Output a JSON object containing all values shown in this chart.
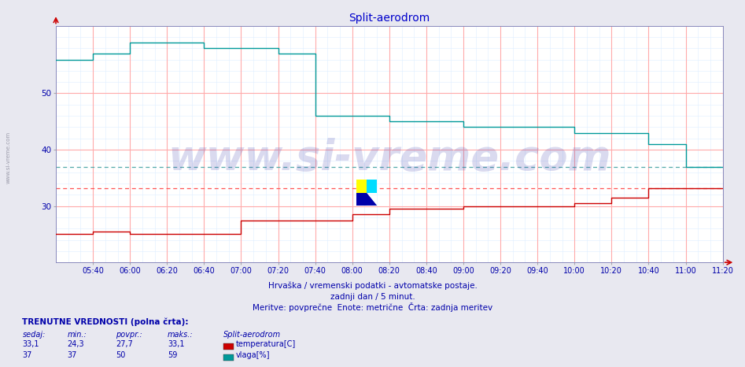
{
  "title": "Split-aerodrom",
  "title_color": "#0000cc",
  "bg_color": "#e8e8f0",
  "plot_bg_color": "#ffffff",
  "grid_major_color": "#ffaaaa",
  "grid_minor_color": "#ddeeff",
  "xlabel_color": "#0000aa",
  "ymin": 20,
  "ymax": 62,
  "yticks": [
    30,
    40,
    50
  ],
  "xmin": 0,
  "xmax": 216,
  "xtick_labels": [
    "05:40",
    "06:00",
    "06:20",
    "06:40",
    "07:00",
    "07:20",
    "07:40",
    "08:00",
    "08:20",
    "08:40",
    "09:00",
    "09:20",
    "09:40",
    "10:00",
    "10:20",
    "10:40",
    "11:00",
    "11:20"
  ],
  "xtick_positions": [
    12,
    24,
    36,
    48,
    60,
    72,
    84,
    96,
    108,
    120,
    132,
    144,
    156,
    168,
    180,
    192,
    204,
    216
  ],
  "temp_color": "#cc0000",
  "hum_color": "#009999",
  "temp_avg_color": "#ff5555",
  "hum_avg_color": "#55aaaa",
  "temp_avg": 33.1,
  "hum_avg": 37,
  "temp_x": [
    0,
    12,
    12,
    24,
    24,
    36,
    36,
    48,
    48,
    60,
    60,
    72,
    72,
    84,
    84,
    96,
    96,
    108,
    108,
    120,
    120,
    132,
    132,
    144,
    144,
    156,
    156,
    168,
    168,
    180,
    180,
    192,
    192,
    204,
    204,
    216
  ],
  "temp_y": [
    25,
    25,
    25.5,
    25.5,
    25,
    25,
    25,
    25,
    25,
    25,
    27.5,
    27.5,
    27.5,
    27.5,
    27.5,
    27.5,
    28.5,
    28.5,
    29.5,
    29.5,
    29.5,
    29.5,
    30,
    30,
    30,
    30,
    30,
    30,
    30.5,
    30.5,
    31.5,
    31.5,
    33.1,
    33.1,
    33.1,
    33.1
  ],
  "hum_x": [
    0,
    12,
    12,
    24,
    24,
    36,
    36,
    48,
    48,
    60,
    60,
    72,
    72,
    84,
    84,
    96,
    96,
    108,
    108,
    120,
    120,
    132,
    132,
    144,
    144,
    156,
    156,
    168,
    168,
    180,
    180,
    192,
    192,
    204,
    204,
    216
  ],
  "hum_y": [
    56,
    56,
    57,
    57,
    59,
    59,
    59,
    59,
    58,
    58,
    58,
    58,
    57,
    57,
    46,
    46,
    46,
    46,
    45,
    45,
    45,
    45,
    44,
    44,
    44,
    44,
    44,
    44,
    43,
    43,
    43,
    43,
    41,
    41,
    37,
    37
  ],
  "watermark_text": "www.si-vreme.com",
  "watermark_color": "#3333aa",
  "watermark_alpha": 0.18,
  "watermark_fontsize": 38,
  "info_label": "TRENUTNE VREDNOSTI (polna črta):",
  "col_headers": [
    "sedaj:",
    "min.:",
    "povpr.:",
    "maks.:",
    "Split-aerodrom"
  ],
  "temp_row": [
    "33,1",
    "24,3",
    "27,7",
    "33,1"
  ],
  "hum_row": [
    "37",
    "37",
    "50",
    "59"
  ],
  "temp_legend": "temperatura[C]",
  "hum_legend": "vlaga[%]",
  "xlabel_text1": "Hrvaška / vremenski podatki - avtomatske postaje.",
  "xlabel_text2": "zadnji dan / 5 minut.",
  "xlabel_text3": "Meritve: povprečne  Enote: metrične  Črta: zadnja meritev",
  "sidebar_text": "www.si-vreme.com",
  "sidebar_color": "#888899"
}
